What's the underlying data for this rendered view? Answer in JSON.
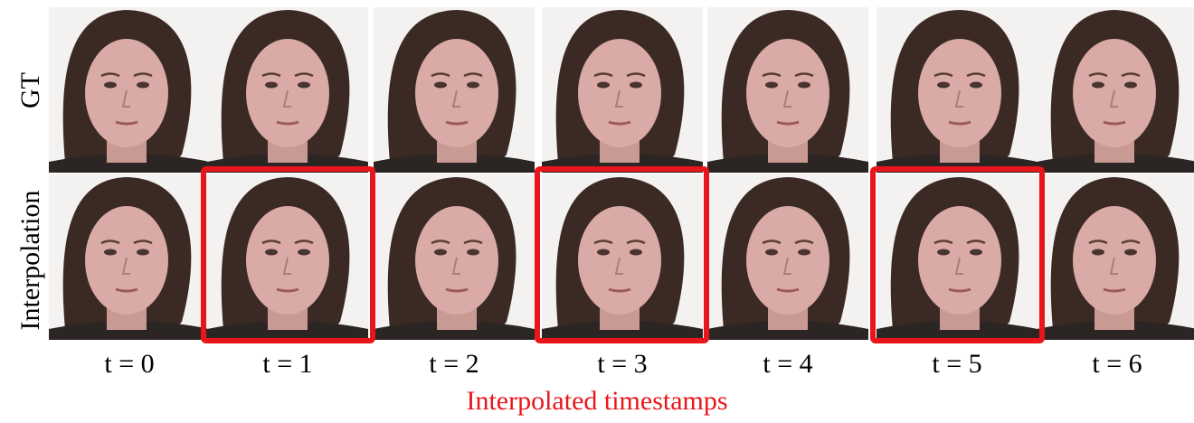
{
  "rows": [
    "GT",
    "Interpolation"
  ],
  "columns": [
    "t = 0",
    "t = 1",
    "t = 2",
    "t = 3",
    "t = 4",
    "t = 5",
    "t = 6"
  ],
  "caption": "Interpolated timestamps"
}
